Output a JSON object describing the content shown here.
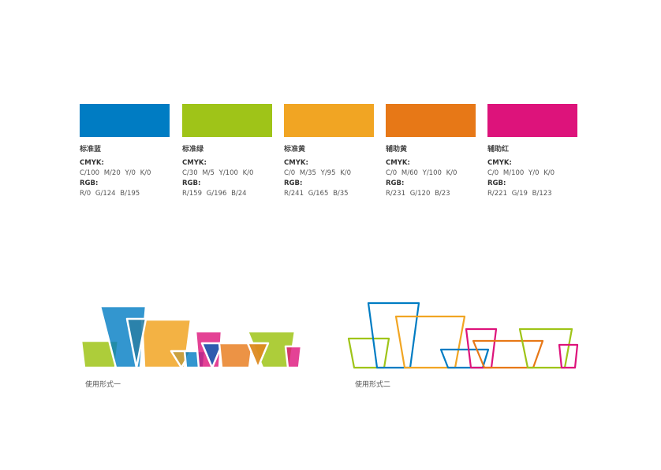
{
  "swatches": [
    {
      "name": "标准蓝",
      "cmyk_label": "CMYK:",
      "cmyk": "C/100  M/20  Y/0  K/0",
      "rgb_label": "RGB:",
      "rgb": "R/0  G/124  B/195",
      "color": "#007CC3"
    },
    {
      "name": "标准绿",
      "cmyk_label": "CMYK:",
      "cmyk": "C/30  M/5  Y/100  K/0",
      "rgb_label": "RGB:",
      "rgb": "R/159  G/196  B/24",
      "color": "#9FC418"
    },
    {
      "name": "标准黄",
      "cmyk_label": "CMYK:",
      "cmyk": "C/0  M/35  Y/95  K/0",
      "rgb_label": "RGB:",
      "rgb": "R/241  G/165  B/35",
      "color": "#F1A523"
    },
    {
      "name": "辅助黄",
      "cmyk_label": "CMYK:",
      "cmyk": "C/0  M/60  Y/100  K/0",
      "rgb_label": "RGB:",
      "rgb": "R/231  G/120  B/23",
      "color": "#E77817"
    },
    {
      "name": "辅助红",
      "cmyk_label": "CMYK:",
      "cmyk": "C/0  M/100  Y/0  K/0",
      "rgb_label": "RGB:",
      "rgb": "R/221  G/19  B/123",
      "color": "#DD137B"
    }
  ],
  "usage": [
    {
      "caption": "使用形式一"
    },
    {
      "caption": "使用形式二"
    }
  ]
}
